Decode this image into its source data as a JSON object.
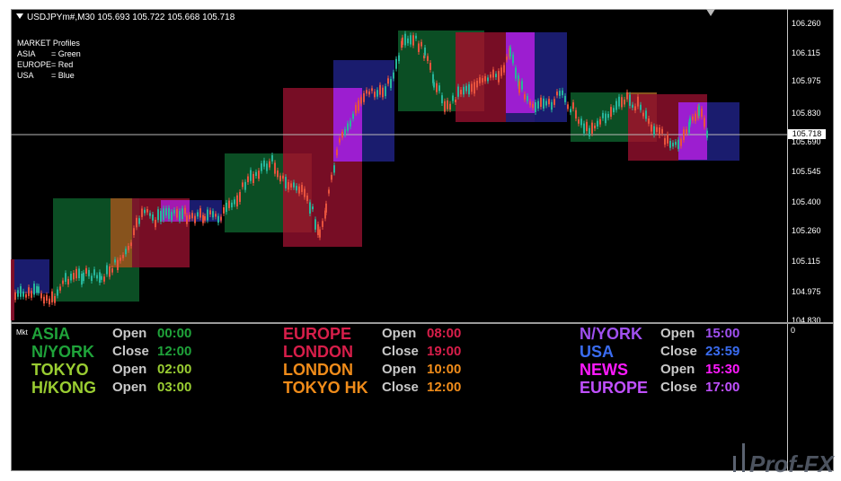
{
  "header": {
    "symbol_line": "USDJPYm#,M30  105.693 105.722 105.668 105.718"
  },
  "legend": {
    "title": "MARKET Profiles",
    "rows": [
      {
        "label": "ASIA",
        "value": "= Green"
      },
      {
        "label": "EUROPE",
        "value": "= Red"
      },
      {
        "label": "USA",
        "value": "= Blue"
      }
    ]
  },
  "price_axis": {
    "labels": [
      "106.260",
      "106.115",
      "105.975",
      "105.830",
      "105.690",
      "105.545",
      "105.400",
      "105.260",
      "105.115",
      "104.975",
      "104.830"
    ],
    "current_price": "105.718"
  },
  "colors": {
    "asia": "#0d5c2a",
    "europe": "#8c0f2c",
    "usa": "#1d1f7a",
    "overlap_orange": "#a6551c",
    "overlap_magenta": "#b21ee0",
    "candle_bull": "#26b59a",
    "candle_bear": "#e8533d"
  },
  "indicator": {
    "label": "Mkt",
    "zero_label": "0",
    "columns": [
      {
        "rows": [
          {
            "name": "ASIA",
            "name_color": "#1fa33a",
            "type": "Open",
            "time": "00:00",
            "time_color": "#1fa33a"
          },
          {
            "name": "N/YORK",
            "name_color": "#1fa33a",
            "type": "Close",
            "time": "12:00",
            "time_color": "#1fa33a"
          },
          {
            "name": "TOKYO",
            "name_color": "#9acd32",
            "type": "Open",
            "time": "02:00",
            "time_color": "#9acd32"
          },
          {
            "name": "H/KONG",
            "name_color": "#9acd32",
            "type": "Open",
            "time": "03:00",
            "time_color": "#9acd32"
          }
        ]
      },
      {
        "rows": [
          {
            "name": "EUROPE",
            "name_color": "#d81e4a",
            "type": "Open",
            "time": "08:00",
            "time_color": "#d81e4a"
          },
          {
            "name": "LONDON",
            "name_color": "#d81e4a",
            "type": "Close",
            "time": "19:00",
            "time_color": "#d81e4a"
          },
          {
            "name": "LONDON",
            "name_color": "#f08c1a",
            "type": "Open",
            "time": "10:00",
            "time_color": "#f08c1a"
          },
          {
            "name": "TOKYO HK",
            "name_color": "#f08c1a",
            "type": "Close",
            "time": "12:00",
            "time_color": "#f08c1a"
          }
        ]
      },
      {
        "rows": [
          {
            "name": "N/YORK",
            "name_color": "#a050f0",
            "type": "Open",
            "time": "15:00",
            "time_color": "#a050f0"
          },
          {
            "name": "USA",
            "name_color": "#3a6cf0",
            "type": "Close",
            "time": "23:59",
            "time_color": "#3a6cf0"
          },
          {
            "name": "NEWS",
            "name_color": "#ff1aff",
            "type": "Open",
            "time": "15:30",
            "time_color": "#ff1aff"
          },
          {
            "name": "EUROPE",
            "name_color": "#c050ff",
            "type": "Close",
            "time": "17:00",
            "time_color": "#c050ff"
          }
        ]
      }
    ]
  },
  "watermark": {
    "text": "Prof-FX"
  }
}
